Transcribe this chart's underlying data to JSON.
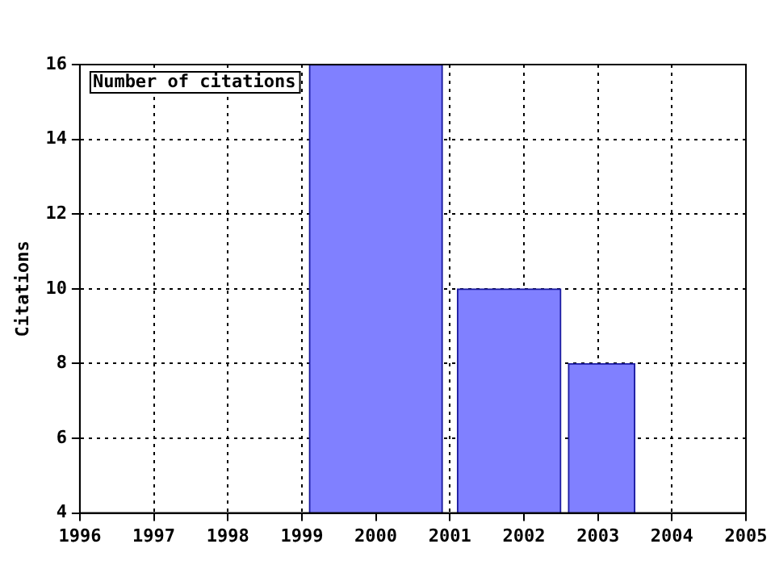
{
  "chart_data": {
    "type": "histogram",
    "ylabel": "Citations",
    "series": [
      {
        "name": "Number of citations",
        "color": "#8080ff",
        "values": [
          16,
          null,
          10,
          null,
          8
        ]
      }
    ],
    "bins": [
      1999.1,
      2000.9,
      2001.1,
      2002.5,
      2002.6,
      2003.5
    ],
    "xlim": [
      1996,
      2005
    ],
    "xticks": [
      1996,
      1997,
      1998,
      1999,
      2000,
      2001,
      2002,
      2003,
      2004,
      2005
    ],
    "ylim": [
      4,
      16
    ],
    "yticks": [
      4,
      6,
      8,
      10,
      12,
      14,
      16
    ],
    "grid": true,
    "legend": "top left"
  }
}
